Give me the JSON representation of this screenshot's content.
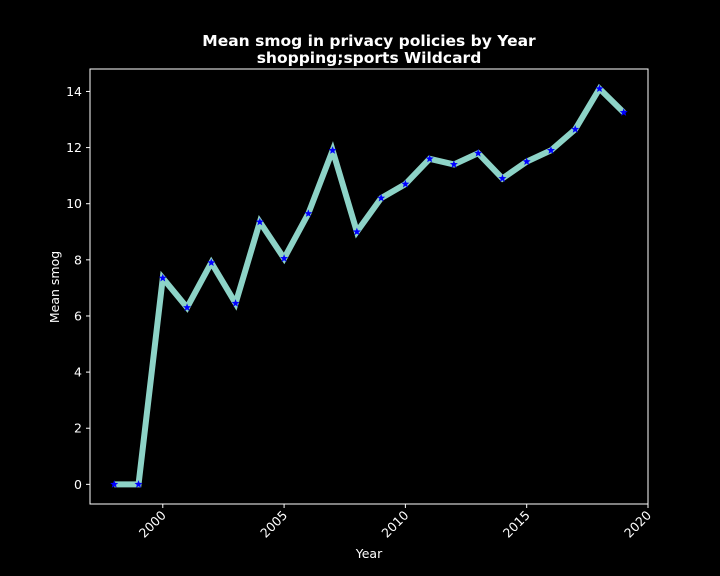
{
  "chart_data": {
    "type": "line",
    "title": "Mean smog in privacy policies by Year",
    "subtitle": "shopping;sports Wildcard",
    "xlabel": "Year",
    "ylabel": "Mean smog",
    "xlim": [
      1997,
      2020
    ],
    "ylim": [
      -0.7,
      14.8
    ],
    "xticks": [
      2000,
      2005,
      2010,
      2015,
      2020
    ],
    "yticks": [
      0,
      2,
      4,
      6,
      8,
      10,
      12,
      14
    ],
    "grid": false,
    "line_color": "#8dd3c7",
    "marker_color": "#0000ff",
    "marker": "star",
    "series": [
      {
        "x": [
          1998,
          1999,
          2000,
          2001,
          2002,
          2003,
          2004,
          2005,
          2006,
          2007,
          2008,
          2009,
          2010,
          2011,
          2012,
          2013,
          2014,
          2015,
          2016,
          2017,
          2018,
          2019
        ],
        "values": [
          0,
          0,
          7.35,
          6.3,
          7.9,
          6.45,
          9.35,
          8.05,
          9.65,
          11.9,
          9.0,
          10.2,
          10.7,
          11.6,
          11.4,
          11.8,
          10.9,
          11.5,
          11.9,
          12.65,
          14.1,
          13.25
        ]
      }
    ]
  }
}
